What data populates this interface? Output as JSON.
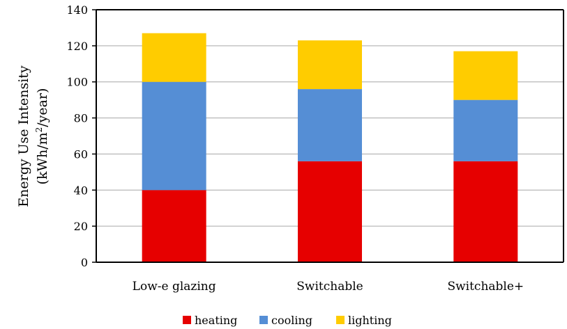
{
  "chart_data": {
    "type": "bar",
    "stacked": true,
    "categories": [
      "Low-e glazing",
      "Switchable",
      "Switchable+"
    ],
    "series": [
      {
        "name": "heating",
        "color": "#e60000",
        "values": [
          40,
          56,
          56
        ]
      },
      {
        "name": "cooling",
        "color": "#558ed5",
        "values": [
          60,
          40,
          34
        ]
      },
      {
        "name": "lighting",
        "color": "#ffcc00",
        "values": [
          27,
          27,
          27
        ]
      }
    ],
    "ylim": [
      0,
      140
    ],
    "yticks": [
      "0",
      "20",
      "40",
      "60",
      "80",
      "100",
      "120",
      "140"
    ],
    "ylabel_line1": "Energy Use Intensity",
    "ylabel_line2_pre": "(kWh/m",
    "ylabel_line2_sup": "2",
    "ylabel_line2_post": "/year)",
    "xlabel": "",
    "grid": true,
    "legend_position": "bottom"
  }
}
